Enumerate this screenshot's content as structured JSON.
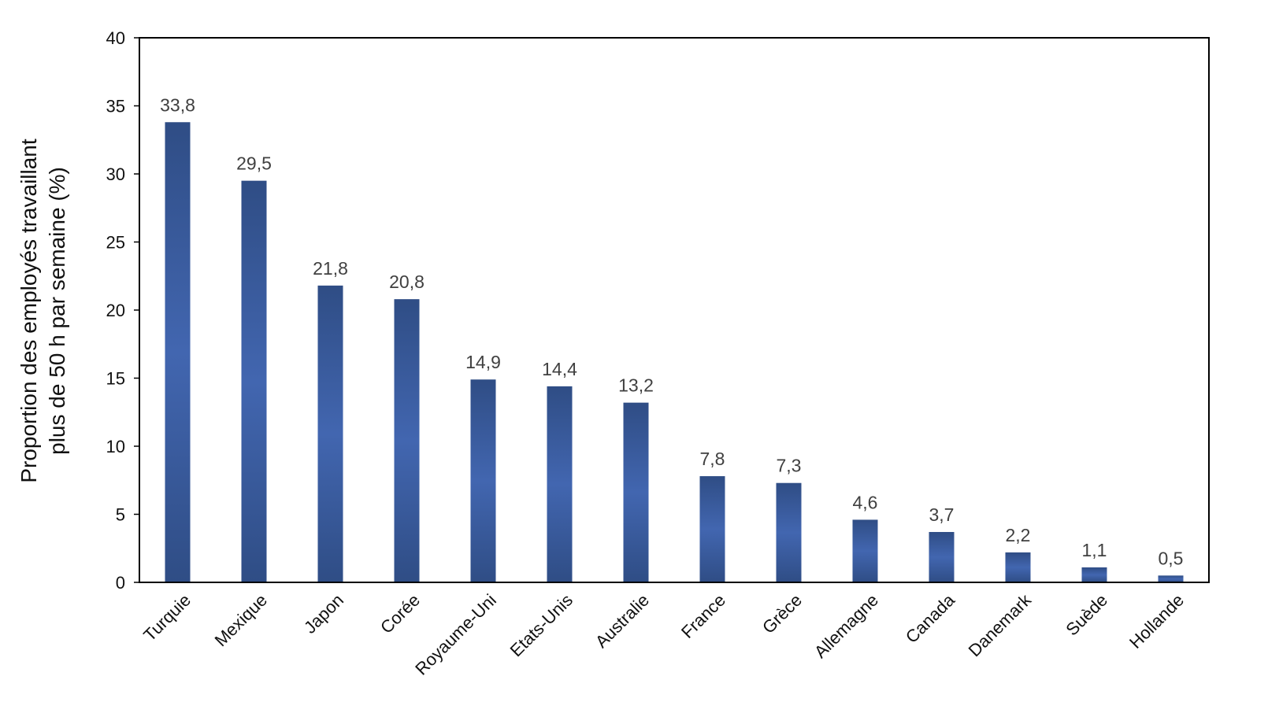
{
  "chart_data": {
    "type": "bar",
    "categories": [
      "Turquie",
      "Mexique",
      "Japon",
      "Corée",
      "Royaume-Uni",
      "Etats-Unis",
      "Australie",
      "France",
      "Grèce",
      "Allemagne",
      "Canada",
      "Danemark",
      "Suède",
      "Hollande"
    ],
    "values": [
      33.8,
      29.5,
      21.8,
      20.8,
      14.9,
      14.4,
      13.2,
      7.8,
      7.3,
      4.6,
      3.7,
      2.2,
      1.1,
      0.5
    ],
    "data_labels": [
      "33,8",
      "29,5",
      "21,8",
      "20,8",
      "14,9",
      "14,4",
      "13,2",
      "7,8",
      "7,3",
      "4,6",
      "3,7",
      "2,2",
      "1,1",
      "0,5"
    ],
    "title": "",
    "xlabel": "",
    "ylabel": [
      "Proportion des employés travaillant",
      "plus de 50 h par semaine (%)"
    ],
    "ylim": [
      0,
      40
    ],
    "yticks": [
      0,
      5,
      10,
      15,
      20,
      25,
      30,
      35,
      40
    ],
    "grid": false,
    "legend": "none",
    "colors": {
      "bar_edge": "#2f4d85",
      "bar_center": "#4266b0",
      "axis": "#000000"
    }
  }
}
